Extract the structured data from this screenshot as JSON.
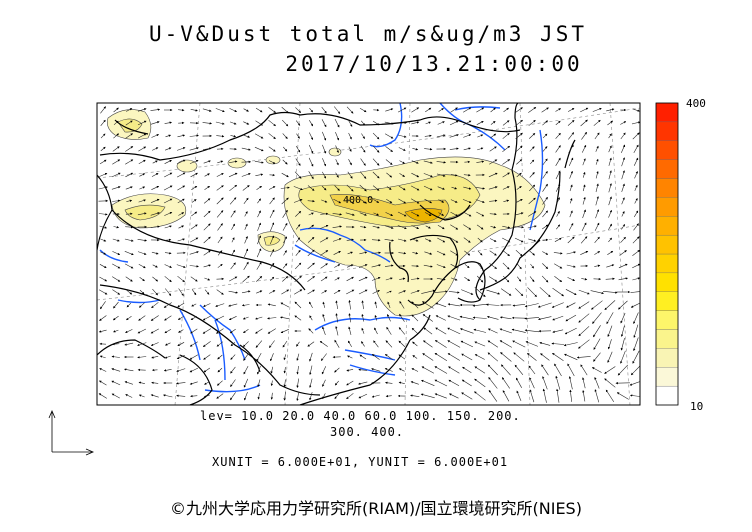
{
  "title_line1": "U-V&Dust total m/s&ug/m3 JST",
  "title_line2": "2017/10/13.21:00:00",
  "map": {
    "contour_label": "400.0",
    "variables": [
      "U-V wind vectors",
      "Dust total concentration"
    ]
  },
  "levels_line1": "lev= 10.0 20.0 40.0 60.0 100. 150. 200.",
  "levels_line2": "300. 400.",
  "units_line": "XUNIT = 6.000E+01, YUNIT = 6.000E+01",
  "colorbar": {
    "max_label": "400",
    "min_label": "10",
    "colors": [
      "#ffffff",
      "#fbf8d8",
      "#f9f4b4",
      "#faf48c",
      "#fdf66a",
      "#ffef22",
      "#ffe100",
      "#ffd200",
      "#ffc200",
      "#ffb000",
      "#ff9b00",
      "#ff8400",
      "#ff6a00",
      "#ff5000",
      "#ff3500",
      "#ff2000"
    ]
  },
  "copyright": "©九州大学応用力学研究所(RIAM)/国立環境研究所(NIES)",
  "colors": {
    "coast": "#000000",
    "rivers": "#1a5cff",
    "dust_light": "#fbf6c0",
    "dust_mid": "#f6ec88",
    "dust_high": "#f2d24a",
    "dust_peak": "#ecb400"
  }
}
